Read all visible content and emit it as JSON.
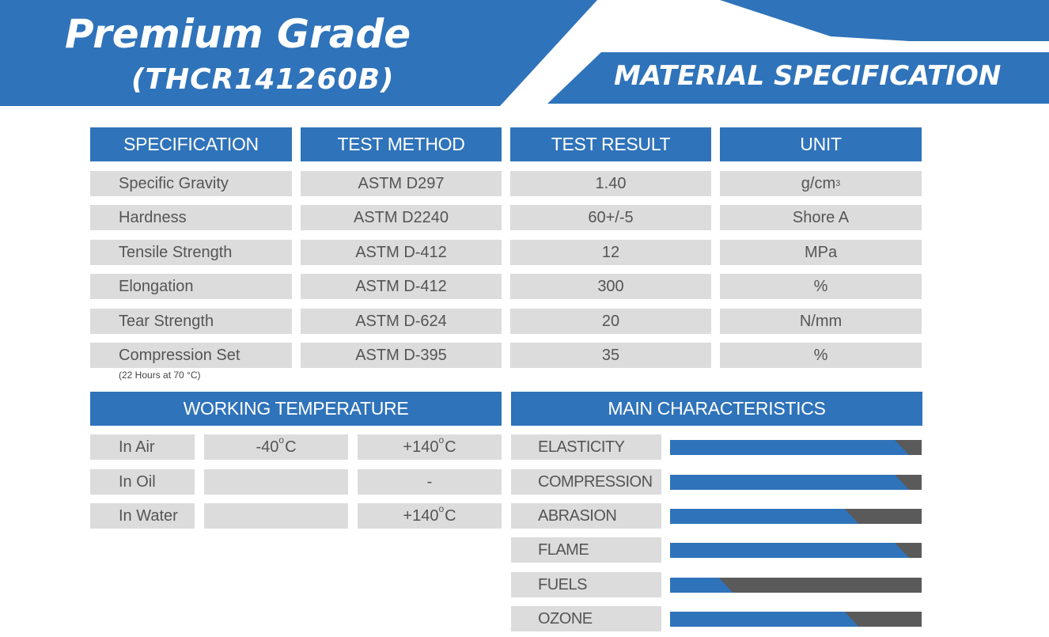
{
  "header": {
    "title": "Premium Grade",
    "subtitle": "(THCR141260B)",
    "right_title": "MATERIAL SPECIFICATION"
  },
  "spec_table": {
    "columns": [
      "SPECIFICATION",
      "TEST METHOD",
      "TEST RESULT",
      "UNIT"
    ],
    "rows": [
      {
        "spec": "Specific Gravity",
        "method": "ASTM D297",
        "result": "1.40",
        "unit": "g/cm",
        "unit_sup": "3"
      },
      {
        "spec": "Hardness",
        "method": "ASTM D2240",
        "result": "60+/-5",
        "unit": "Shore A",
        "unit_sup": ""
      },
      {
        "spec": "Tensile Strength",
        "method": "ASTM D-412",
        "result": "12",
        "unit": "MPa",
        "unit_sup": ""
      },
      {
        "spec": "Elongation",
        "method": "ASTM D-412",
        "result": "300",
        "unit": "%",
        "unit_sup": ""
      },
      {
        "spec": "Tear Strength",
        "method": "ASTM D-624",
        "result": "20",
        "unit": "N/mm",
        "unit_sup": ""
      },
      {
        "spec": "Compression Set",
        "method": "ASTM D-395",
        "result": "35",
        "unit": "%",
        "unit_sup": ""
      }
    ],
    "compression_note": "(22 Hours at 70 °C)"
  },
  "working_temperature": {
    "title": "WORKING TEMPERATURE",
    "rows": [
      {
        "label": "In Air",
        "min": "-40",
        "max": "+140"
      },
      {
        "label": "In Oil",
        "min": "",
        "max": "-"
      },
      {
        "label": "In Water",
        "min": "",
        "max": "+140"
      }
    ],
    "degree_symbol": "o",
    "unit": "C"
  },
  "main_characteristics": {
    "title": "MAIN CHARACTERISTICS",
    "items": [
      {
        "label": "ELASTICITY",
        "level": 0.95
      },
      {
        "label": "COMPRESSION",
        "level": 0.95
      },
      {
        "label": "ABRASION",
        "level": 0.75
      },
      {
        "label": "FLAME",
        "level": 0.95
      },
      {
        "label": "FUELS",
        "level": 0.25
      },
      {
        "label": "OZONE",
        "level": 0.75
      }
    ]
  },
  "colors": {
    "brand_blue": "#2f73ba",
    "cell_grey": "#dcdcdc",
    "bar_track": "#5a5a5a"
  }
}
